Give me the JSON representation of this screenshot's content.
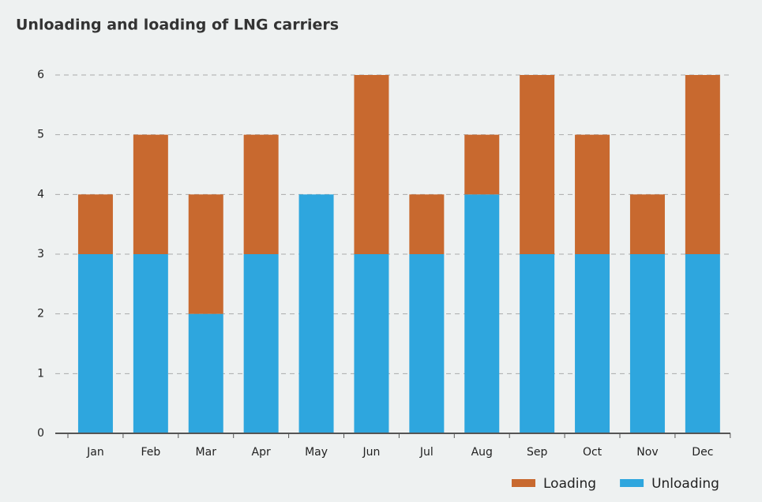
{
  "chart_data": {
    "type": "stacked_bar",
    "title": "Unloading and loading of LNG carriers",
    "categories": [
      "Jan",
      "Feb",
      "Mar",
      "Apr",
      "May",
      "Jun",
      "Jul",
      "Aug",
      "Sep",
      "Oct",
      "Nov",
      "Dec"
    ],
    "series": [
      {
        "name": "Unloading",
        "color": "#2ea6de",
        "values": [
          3,
          3,
          2,
          3,
          4,
          3,
          3,
          4,
          3,
          3,
          3,
          3
        ]
      },
      {
        "name": "Loading",
        "color": "#c8692f",
        "values": [
          1,
          2,
          2,
          2,
          0,
          3,
          1,
          1,
          3,
          2,
          1,
          3
        ]
      }
    ],
    "ylim": [
      0,
      6
    ],
    "yticks": [
      0,
      1,
      2,
      3,
      4,
      5,
      6
    ],
    "grid": true,
    "legend": "bottom-right"
  }
}
